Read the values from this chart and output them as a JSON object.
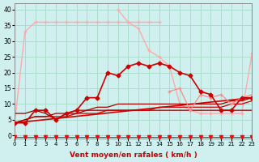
{
  "xlabel": "Vent moyen/en rafales ( km/h )",
  "bg_color": "#cff0ee",
  "grid_color": "#aaddcc",
  "xlim": [
    0,
    23
  ],
  "ylim": [
    -1,
    42
  ],
  "xticks": [
    0,
    1,
    2,
    3,
    4,
    5,
    6,
    7,
    8,
    9,
    10,
    11,
    12,
    13,
    14,
    15,
    16,
    17,
    18,
    19,
    20,
    21,
    22,
    23
  ],
  "yticks": [
    0,
    5,
    10,
    15,
    20,
    25,
    30,
    35,
    40
  ],
  "series": [
    {
      "x": [
        0,
        1,
        2,
        3,
        4,
        5,
        6,
        7,
        8,
        9,
        10,
        11,
        12,
        13,
        14
      ],
      "y": [
        4,
        33,
        36,
        36,
        36,
        36,
        36,
        36,
        36,
        36,
        36,
        36,
        36,
        36,
        36
      ],
      "color": "#ffaaaa",
      "marker": "+",
      "markersize": 3,
      "linewidth": 1.0,
      "zorder": 2
    },
    {
      "x": [
        10,
        11,
        12,
        13,
        14,
        15
      ],
      "y": [
        40,
        36,
        34,
        27,
        25,
        22
      ],
      "color": "#ffaaaa",
      "marker": "+",
      "markersize": 3,
      "linewidth": 1.0,
      "zorder": 2
    },
    {
      "x": [
        15,
        16,
        17,
        18,
        19,
        20,
        21,
        22,
        23
      ],
      "y": [
        22,
        10,
        8,
        7,
        7,
        7,
        7,
        7,
        26
      ],
      "color": "#ffaaaa",
      "marker": "+",
      "markersize": 3,
      "linewidth": 1.0,
      "zorder": 2
    },
    {
      "x": [
        0,
        1,
        2,
        3,
        4,
        5,
        6,
        7,
        8,
        9,
        10,
        11,
        12,
        13,
        14,
        15,
        16,
        17,
        18,
        19,
        20,
        21,
        22,
        23
      ],
      "y": [
        4,
        4,
        8,
        8,
        5,
        7,
        8,
        12,
        12,
        20,
        19,
        22,
        23,
        22,
        23,
        22,
        20,
        19,
        14,
        13,
        8,
        8,
        12,
        12
      ],
      "color": "#cc0000",
      "marker": "D",
      "markersize": 2.5,
      "linewidth": 1.2,
      "zorder": 4
    },
    {
      "x": [
        0,
        23
      ],
      "y": [
        4,
        12
      ],
      "color": "#cc0000",
      "marker": null,
      "markersize": 0,
      "linewidth": 1.2,
      "zorder": 3
    },
    {
      "x": [
        0,
        1,
        2,
        3,
        4,
        5,
        6,
        7,
        8,
        9,
        10,
        11,
        12,
        13,
        14,
        15,
        16,
        17,
        18,
        19,
        20,
        21,
        22,
        23
      ],
      "y": [
        7,
        7,
        8,
        7,
        5,
        7,
        7,
        8,
        8,
        8,
        8,
        8,
        8,
        8,
        8,
        8,
        8,
        8,
        8,
        8,
        8,
        8,
        8,
        8
      ],
      "color": "#880000",
      "marker": null,
      "markersize": 0,
      "linewidth": 0.9,
      "zorder": 2
    },
    {
      "x": [
        0,
        1,
        2,
        3,
        4,
        5,
        6,
        7,
        8,
        9,
        10,
        11,
        12,
        13,
        14,
        15,
        16,
        17,
        18,
        19,
        20,
        21,
        22,
        23
      ],
      "y": [
        4,
        5,
        6,
        6,
        6,
        6,
        7,
        7,
        7,
        8,
        8,
        8,
        8,
        8,
        9,
        9,
        9,
        9,
        9,
        9,
        9,
        10,
        10,
        11
      ],
      "color": "#cc0000",
      "marker": null,
      "markersize": 0,
      "linewidth": 0.9,
      "zorder": 2
    },
    {
      "x": [
        0,
        1,
        2,
        3,
        4,
        5,
        6,
        7,
        8,
        9,
        10,
        11,
        12,
        13,
        14,
        15,
        16,
        17,
        18,
        19,
        20,
        21,
        22,
        23
      ],
      "y": [
        4,
        5,
        6,
        6,
        7,
        7,
        8,
        8,
        9,
        9,
        10,
        10,
        10,
        10,
        10,
        10,
        10,
        10,
        10,
        10,
        10,
        11,
        11,
        12
      ],
      "color": "#aa0000",
      "marker": null,
      "markersize": 0,
      "linewidth": 0.9,
      "zorder": 2
    },
    {
      "x": [
        15,
        16,
        17,
        18,
        19,
        20,
        21,
        22,
        23
      ],
      "y": [
        14,
        15,
        8,
        13,
        12,
        13,
        10,
        12,
        13
      ],
      "color": "#ff8888",
      "marker": "+",
      "markersize": 3,
      "linewidth": 0.9,
      "zorder": 3
    },
    {
      "x": [
        0,
        1,
        2,
        3,
        4,
        5,
        6,
        7,
        8,
        9,
        10,
        11,
        12,
        13,
        14,
        15,
        16,
        17,
        18,
        19,
        20,
        21,
        22,
        23
      ],
      "y": [
        -0.5,
        -0.5,
        -0.5,
        -0.5,
        -0.5,
        -0.5,
        -0.5,
        -0.5,
        -0.5,
        -0.5,
        -0.5,
        -0.5,
        -0.5,
        -0.5,
        -0.5,
        -0.5,
        -0.5,
        -0.5,
        -0.5,
        -0.5,
        -0.5,
        -0.5,
        -0.5,
        -0.5
      ],
      "color": "#ff0000",
      "marker": "v",
      "markersize": 3,
      "linewidth": 0.7,
      "zorder": 5
    }
  ]
}
